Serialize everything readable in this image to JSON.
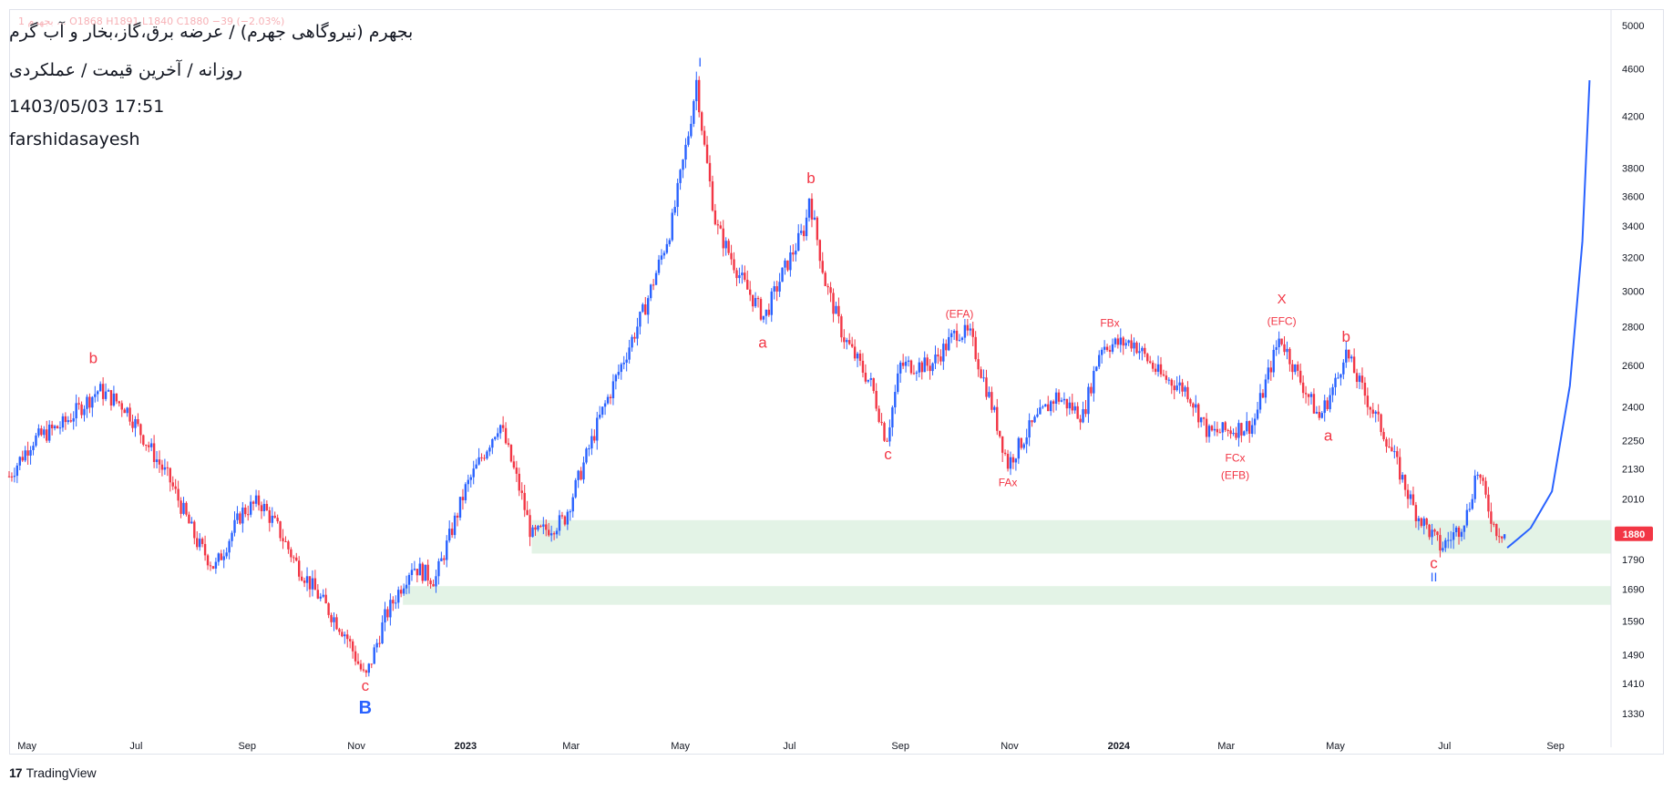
{
  "header": {
    "title": "بجهرم (نیروگاهی جهرم) / عرضه برق،گاز،بخار و آب گرم",
    "subtitle": "روزانه / آخرین قیمت / عملکردی",
    "datetime": "1403/05/03 17:51",
    "author": "farshidasayesh",
    "ohlc": "1 بجهرم ... O1868 H1891 L1840 C1880 −39 (−2.03%)"
  },
  "footer": {
    "brand": "TradingView"
  },
  "colors": {
    "up": "#2962ff",
    "down": "#f23645",
    "wave": "#2962ff",
    "zone": "#d4edd9",
    "label_red": "#f23645",
    "label_blue": "#2962ff"
  },
  "chart_data": {
    "type": "candlestick",
    "title": "بجهرم (نیروگاهی جهرم) / عرضه برق،گاز،بخار و آب گرم",
    "y_scale": "log",
    "ylim": [
      1280,
      5000
    ],
    "y_ticks": [
      5000,
      4600,
      4200,
      3800,
      3600,
      3400,
      3200,
      3000,
      2800,
      2600,
      2400,
      2250,
      2130,
      2010,
      1790,
      1690,
      1590,
      1490,
      1410,
      1330
    ],
    "last_price": 1880,
    "x_ticks": [
      {
        "label": "May",
        "t": 0
      },
      {
        "label": "Jul",
        "t": 61
      },
      {
        "label": "Sep",
        "t": 123
      },
      {
        "label": "Nov",
        "t": 184
      },
      {
        "label": "2023",
        "t": 245
      },
      {
        "label": "Mar",
        "t": 304
      },
      {
        "label": "May",
        "t": 365
      },
      {
        "label": "Jul",
        "t": 426
      },
      {
        "label": "Sep",
        "t": 488
      },
      {
        "label": "Nov",
        "t": 549
      },
      {
        "label": "2024",
        "t": 610
      },
      {
        "label": "Mar",
        "t": 670
      },
      {
        "label": "May",
        "t": 731
      },
      {
        "label": "Jul",
        "t": 792
      },
      {
        "label": "Sep",
        "t": 854
      }
    ],
    "xlim": [
      -10,
      885
    ],
    "price_path": [
      [
        -10,
        2100
      ],
      [
        3,
        2250
      ],
      [
        20,
        2320
      ],
      [
        40,
        2480
      ],
      [
        55,
        2400
      ],
      [
        70,
        2200
      ],
      [
        80,
        2080
      ],
      [
        95,
        1850
      ],
      [
        105,
        1760
      ],
      [
        120,
        1960
      ],
      [
        130,
        2000
      ],
      [
        140,
        1900
      ],
      [
        150,
        1780
      ],
      [
        165,
        1650
      ],
      [
        178,
        1550
      ],
      [
        189,
        1420
      ],
      [
        200,
        1600
      ],
      [
        215,
        1770
      ],
      [
        228,
        1720
      ],
      [
        245,
        2050
      ],
      [
        264,
        2330
      ],
      [
        276,
        2030
      ],
      [
        282,
        1870
      ],
      [
        300,
        1930
      ],
      [
        320,
        2350
      ],
      [
        345,
        2900
      ],
      [
        360,
        3400
      ],
      [
        370,
        4100
      ],
      [
        374,
        4500
      ],
      [
        378,
        4000
      ],
      [
        385,
        3400
      ],
      [
        400,
        3050
      ],
      [
        412,
        2850
      ],
      [
        422,
        3100
      ],
      [
        435,
        3400
      ],
      [
        437,
        3600
      ],
      [
        446,
        3050
      ],
      [
        456,
        2750
      ],
      [
        472,
        2500
      ],
      [
        480,
        2250
      ],
      [
        488,
        2600
      ],
      [
        505,
        2600
      ],
      [
        520,
        2780
      ],
      [
        527,
        2750
      ],
      [
        540,
        2380
      ],
      [
        548,
        2150
      ],
      [
        560,
        2300
      ],
      [
        575,
        2450
      ],
      [
        590,
        2360
      ],
      [
        600,
        2700
      ],
      [
        618,
        2720
      ],
      [
        633,
        2550
      ],
      [
        648,
        2480
      ],
      [
        660,
        2280
      ],
      [
        675,
        2300
      ],
      [
        685,
        2320
      ],
      [
        695,
        2600
      ],
      [
        700,
        2750
      ],
      [
        710,
        2550
      ],
      [
        722,
        2350
      ],
      [
        733,
        2550
      ],
      [
        736,
        2680
      ],
      [
        745,
        2500
      ],
      [
        760,
        2250
      ],
      [
        775,
        1970
      ],
      [
        790,
        1830
      ],
      [
        800,
        1900
      ],
      [
        805,
        1960
      ],
      [
        810,
        2130
      ],
      [
        820,
        1900
      ],
      [
        826,
        1880
      ]
    ],
    "projection": [
      [
        827,
        1830
      ],
      [
        840,
        1900
      ],
      [
        852,
        2040
      ],
      [
        862,
        2500
      ],
      [
        869,
        3300
      ],
      [
        873,
        4500
      ]
    ],
    "zones": [
      {
        "t0": 282,
        "t1": 885,
        "y_low": 1810,
        "y_high": 1930
      },
      {
        "t0": 210,
        "t1": 885,
        "y_low": 1640,
        "y_high": 1700
      }
    ],
    "wave_labels": [
      {
        "text": "b",
        "t": 37,
        "price": 2610,
        "color": "red",
        "size": 17
      },
      {
        "text": "c",
        "t": 189,
        "price": 1390,
        "color": "red",
        "size": 17
      },
      {
        "text": "B",
        "t": 189,
        "price": 1330,
        "color": "blue",
        "size": 20
      },
      {
        "text": "I",
        "t": 376,
        "price": 4620,
        "color": "blue",
        "size": 14
      },
      {
        "text": "b",
        "t": 438,
        "price": 3690,
        "color": "red",
        "size": 17
      },
      {
        "text": "a",
        "t": 411,
        "price": 2690,
        "color": "red",
        "size": 17
      },
      {
        "text": "c",
        "t": 481,
        "price": 2170,
        "color": "red",
        "size": 17
      },
      {
        "text": "(EFA)",
        "t": 521,
        "price": 2850,
        "color": "red",
        "size": 12
      },
      {
        "text": "FAx",
        "t": 548,
        "price": 2060,
        "color": "red",
        "size": 12
      },
      {
        "text": "FBx",
        "t": 605,
        "price": 2800,
        "color": "red",
        "size": 12
      },
      {
        "text": "FCx",
        "t": 675,
        "price": 2160,
        "color": "red",
        "size": 12
      },
      {
        "text": "(EFB)",
        "t": 675,
        "price": 2090,
        "color": "red",
        "size": 12
      },
      {
        "text": "X",
        "t": 701,
        "price": 2930,
        "color": "red",
        "size": 15
      },
      {
        "text": "(EFC)",
        "t": 701,
        "price": 2810,
        "color": "red",
        "size": 12
      },
      {
        "text": "b",
        "t": 737,
        "price": 2720,
        "color": "red",
        "size": 17
      },
      {
        "text": "a",
        "t": 727,
        "price": 2250,
        "color": "red",
        "size": 17
      },
      {
        "text": "c",
        "t": 786,
        "price": 1760,
        "color": "red",
        "size": 17
      },
      {
        "text": "II",
        "t": 786,
        "price": 1715,
        "color": "blue",
        "size": 14
      }
    ]
  }
}
